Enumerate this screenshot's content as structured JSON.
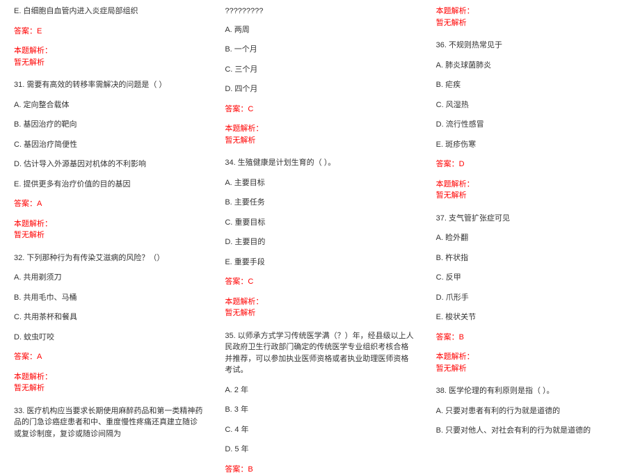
{
  "columns": {
    "col1": {
      "q30_optE": "E. 白细胞自血管内进入炎症局部组织",
      "q30_answer": "答案：E",
      "q30_analysis_label": "本题解析：",
      "q30_analysis_content": "暂无解析",
      "q31_num": "31. 需要有高效的转移率需解决的问题是（  ）",
      "q31_optA": "A. 定向整合载体",
      "q31_optB": "B. 基因治疗的靶向",
      "q31_optC": "C. 基因治疗简便性",
      "q31_optD": "D. 估计导入外源基因对机体的不利影响",
      "q31_optE": "E. 提供更多有治疗价值的目的基因",
      "q31_answer": "答案：A",
      "q31_analysis_label": "本题解析：",
      "q31_analysis_content": "暂无解析",
      "q32_num": "32. 下列那种行为有传染艾滋病的风险？（）",
      "q32_optA": "A. 共用剃须刀",
      "q32_optB": "B. 共用毛巾、马桶",
      "q32_optC": "C. 共用茶杯和餐具",
      "q32_optD": "D. 蚊虫叮咬",
      "q32_answer": "答案：A",
      "q32_analysis_label": "本题解析：",
      "q32_analysis_content": "暂无解析",
      "q33_num": "33. 医疗机构应当要求长期使用麻醉药品和第一类精神药品的门急诊癌症患者和中、重度慢性疼痛还真建立随诊或复诊制度，复诊或随诊间隔为"
    },
    "col2": {
      "q33_placeholder": "?????????",
      "q33_optA": "A. 两周",
      "q33_optB": "B. 一个月",
      "q33_optC": "C. 三个月",
      "q33_optD": "D. 四个月",
      "q33_answer": "答案：C",
      "q33_analysis_label": "本题解析：",
      "q33_analysis_content": "暂无解析",
      "q34_num": "34. 生殖健康是计划生育的（  ）。",
      "q34_optA": "A. 主要目标",
      "q34_optB": "B. 主要任务",
      "q34_optC": "C. 重要目标",
      "q34_optD": "D. 主要目的",
      "q34_optE": "E. 重要手段",
      "q34_answer": "答案：C",
      "q34_analysis_label": "本题解析：",
      "q34_analysis_content": "暂无解析",
      "q35_num": "35. 以师承方式学习传统医学满（？）年，经县级以上人民政府卫生行政部门确定的传统医学专业组织考核合格并推荐，可以参加执业医师资格或者执业助理医师资格考试。",
      "q35_optA": "A. 2 年",
      "q35_optB": "B. 3 年",
      "q35_optC": "C. 4 年",
      "q35_optD": "D. 5 年",
      "q35_answer": "答案：B"
    },
    "col3": {
      "q35_analysis_label": "本题解析：",
      "q35_analysis_content": "暂无解析",
      "q36_num": "36. 不规则热常见于",
      "q36_optA": "A. 肺炎球菌肺炎",
      "q36_optB": "B. 疟疾",
      "q36_optC": "C. 风湿热",
      "q36_optD": "D. 流行性感冒",
      "q36_optE": "E. 斑疹伤寒",
      "q36_answer": "答案：D",
      "q36_analysis_label": "本题解析：",
      "q36_analysis_content": "暂无解析",
      "q37_num": "37. 支气管扩张症可见",
      "q37_optA": "A. 睑外翻",
      "q37_optB": "B. 杵状指",
      "q37_optC": "C. 反甲",
      "q37_optD": "D. 爪形手",
      "q37_optE": "E. 梭状关节",
      "q37_answer": "答案：B",
      "q37_analysis_label": "本题解析：",
      "q37_analysis_content": "暂无解析",
      "q38_num": "38. 医学伦理的有利原则是指（ ）。",
      "q38_optA": "A. 只要对患者有利的行为就是道德的",
      "q38_optB": "B. 只要对他人、对社会有利的行为就是道德的"
    }
  },
  "styling": {
    "text_color": "#333333",
    "answer_color": "#ff0000",
    "background_color": "#ffffff",
    "font_size": 11,
    "line_height": 1.5
  }
}
